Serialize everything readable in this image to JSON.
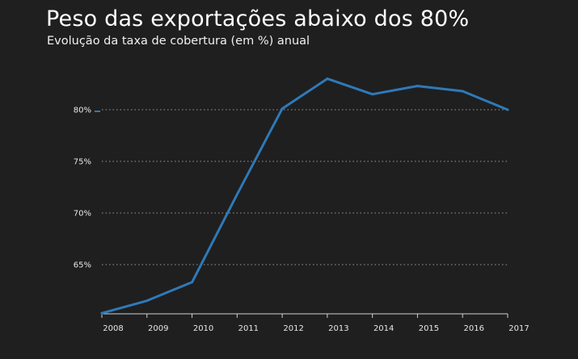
{
  "title": "Peso das exportações abaixo dos 80%",
  "subtitle": "Evolução da taxa de cobertura (em %) anual",
  "colors": {
    "background": "#1f1f1f",
    "line": "#2f79b8",
    "grid": "#9a9a9a",
    "text": "#ffffff"
  },
  "chart_data": {
    "type": "line",
    "title": "Peso das exportações abaixo dos 80%",
    "subtitle": "Evolução da taxa de cobertura (em %) anual",
    "xlabel": "",
    "ylabel": "",
    "categories": [
      "2008",
      "2009",
      "2010",
      "2011",
      "2012",
      "2013",
      "2014",
      "2015",
      "2016",
      "2017"
    ],
    "series": [
      {
        "values": [
          60.3,
          61.5,
          63.3,
          71.8,
          80.1,
          83.0,
          81.5,
          82.3,
          81.8,
          80.0
        ]
      }
    ],
    "y_ticks": [
      65,
      70,
      75,
      80
    ],
    "y_tick_labels": [
      "65%",
      "70%",
      "75%",
      "80%"
    ],
    "ylim": [
      60,
      85
    ],
    "grid": "horizontal dotted",
    "legend": "none"
  }
}
